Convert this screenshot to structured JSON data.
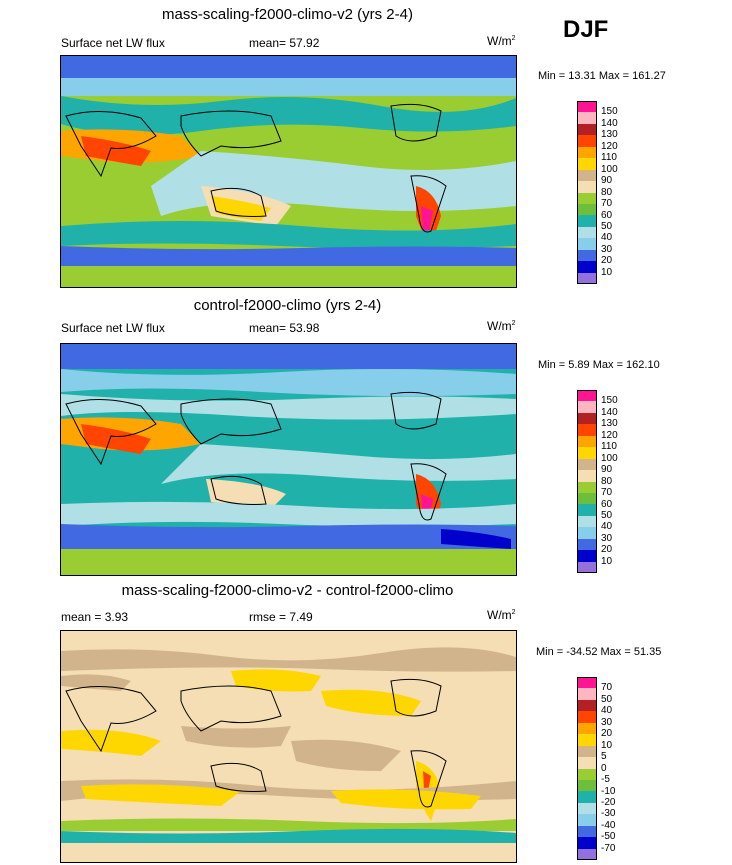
{
  "season": "DJF",
  "panels": [
    {
      "title": "mass-scaling-f2000-climo-v2 (yrs 2-4)",
      "left_label": "Surface net LW flux",
      "center_label": "mean=  57.92",
      "units_base": "W/m",
      "units_sup": "2",
      "stats": "Min =  13.31 Max = 161.27",
      "colorbar": {
        "ticks": [
          "150",
          "140",
          "130",
          "120",
          "110",
          "100",
          "90",
          "80",
          "70",
          "60",
          "50",
          "40",
          "30",
          "20",
          "10"
        ],
        "colors": [
          "#ff1493",
          "#ffb6c1",
          "#b22222",
          "#ff4500",
          "#ffa500",
          "#ffd700",
          "#d2b48c",
          "#f5deb3",
          "#9acd32",
          "#6bbf3a",
          "#20b2aa",
          "#b0e0e6",
          "#87ceeb",
          "#4169e1",
          "#0000cd",
          "#9370db"
        ]
      }
    },
    {
      "title": "control-f2000-climo (yrs 2-4)",
      "left_label": "Surface net LW flux",
      "center_label": "mean=  53.98",
      "units_base": "W/m",
      "units_sup": "2",
      "stats": "Min =   5.89 Max = 162.10",
      "colorbar": {
        "ticks": [
          "150",
          "140",
          "130",
          "120",
          "110",
          "100",
          "90",
          "80",
          "70",
          "60",
          "50",
          "40",
          "30",
          "20",
          "10"
        ],
        "colors": [
          "#ff1493",
          "#ffb6c1",
          "#b22222",
          "#ff4500",
          "#ffa500",
          "#ffd700",
          "#d2b48c",
          "#f5deb3",
          "#9acd32",
          "#6bbf3a",
          "#20b2aa",
          "#b0e0e6",
          "#87ceeb",
          "#4169e1",
          "#0000cd",
          "#9370db"
        ]
      }
    },
    {
      "title": "mass-scaling-f2000-climo-v2 - control-f2000-climo",
      "left_label": "mean =   3.93",
      "center_label": "rmse =   7.49",
      "units_base": "W/m",
      "units_sup": "2",
      "stats": "Min = -34.52 Max =  51.35",
      "colorbar": {
        "ticks": [
          "70",
          "50",
          "40",
          "30",
          "20",
          "10",
          "5",
          "0",
          "-5",
          "-10",
          "-20",
          "-30",
          "-40",
          "-50",
          "-70"
        ],
        "colors": [
          "#ff1493",
          "#ffb6c1",
          "#b22222",
          "#ff4500",
          "#ffa500",
          "#ffd700",
          "#d2b48c",
          "#f5deb3",
          "#9acd32",
          "#6bbf3a",
          "#20b2aa",
          "#b0e0e6",
          "#87ceeb",
          "#4169e1",
          "#0000cd",
          "#9370db"
        ]
      }
    }
  ]
}
